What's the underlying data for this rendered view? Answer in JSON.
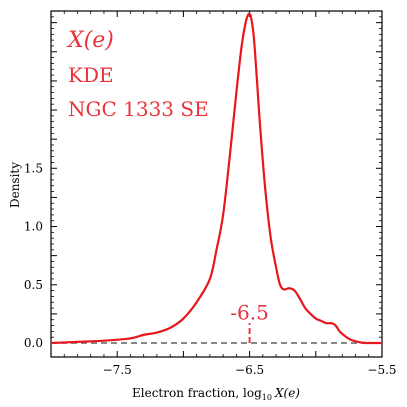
{
  "chart_data": {
    "type": "line",
    "xlabel_main": "Electron fraction, log",
    "xlabel_sub": "10",
    "xlabel_var": "X(e)",
    "ylabel": "Density",
    "xlim": [
      -8.0,
      -5.5
    ],
    "ylim": [
      -0.12,
      2.85
    ],
    "x_ticks": [
      -7.5,
      -6.5,
      -5.5
    ],
    "x_tick_labels": [
      "−7.5",
      "−6.5",
      "−5.5"
    ],
    "y_ticks": [
      0.0,
      0.5,
      1.0,
      1.5
    ],
    "y_tick_labels": [
      "0.0",
      "0.5",
      "1.0",
      "1.5"
    ],
    "line_color": "#e8171c",
    "baseline_color": "#777777",
    "annotation_color": "#e8343a",
    "annotations": {
      "variable": "X(e)",
      "method": "KDE",
      "source": "NGC 1333 SE"
    },
    "marker": {
      "x": -6.5,
      "label": "-6.5"
    },
    "series": [
      {
        "x": [
          -8.0,
          -7.8,
          -7.6,
          -7.4,
          -7.3,
          -7.2,
          -7.1,
          -7.0,
          -6.9,
          -6.8,
          -6.75,
          -6.7,
          -6.65,
          -6.6,
          -6.56,
          -6.53,
          -6.51,
          -6.5,
          -6.49,
          -6.47,
          -6.45,
          -6.42,
          -6.38,
          -6.34,
          -6.3,
          -6.27,
          -6.24,
          -6.2,
          -6.16,
          -6.12,
          -6.08,
          -6.04,
          -6.0,
          -5.96,
          -5.92,
          -5.88,
          -5.85,
          -5.82,
          -5.78,
          -5.74,
          -5.7,
          -5.66,
          -5.62,
          -5.6,
          -5.55,
          -5.5
        ],
        "values": [
          0.0,
          0.01,
          0.02,
          0.04,
          0.07,
          0.09,
          0.13,
          0.21,
          0.35,
          0.55,
          0.8,
          1.1,
          1.6,
          2.15,
          2.55,
          2.75,
          2.82,
          2.82,
          2.8,
          2.65,
          2.35,
          1.85,
          1.3,
          0.9,
          0.65,
          0.5,
          0.46,
          0.47,
          0.45,
          0.38,
          0.3,
          0.25,
          0.21,
          0.19,
          0.17,
          0.17,
          0.15,
          0.1,
          0.06,
          0.03,
          0.015,
          0.005,
          0.0,
          0.0,
          0.0,
          0.0
        ]
      }
    ]
  }
}
